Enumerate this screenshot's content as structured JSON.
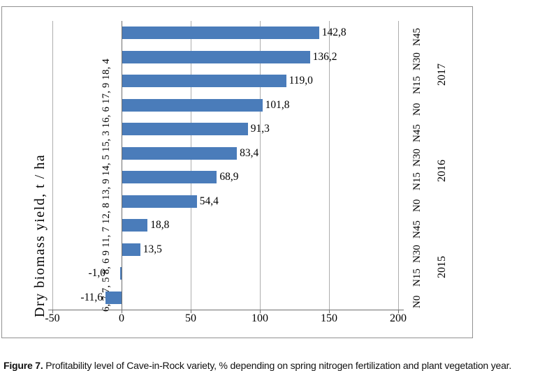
{
  "figure_caption": {
    "label": "Figure 7.",
    "text": "Profitability level of Cave-in-Rock variety, % depending on spring nitrogen fertilization and plant vegetation year."
  },
  "chart_data": {
    "type": "bar",
    "orientation": "horizontal",
    "value_unit": "%",
    "left_axis_title": "Dry biomass yield, t / ha",
    "x_ticks": [
      "-50",
      "0",
      "50",
      "100",
      "150",
      "200"
    ],
    "xlim": [
      -50,
      200
    ],
    "grid": true,
    "legend": "none",
    "bar_color": "#4a7cba",
    "gridline_color": "#adadad",
    "axis_color": "#6e6e6e",
    "rows": [
      {
        "year": "2017",
        "treatment": "N45",
        "value": 142.8,
        "label": "142,8"
      },
      {
        "year": "2017",
        "treatment": "N30",
        "value": 136.2,
        "label": "136,2"
      },
      {
        "year": "2017",
        "treatment": "N15",
        "value": 119.0,
        "label": "119,0"
      },
      {
        "year": "2017",
        "treatment": "N0",
        "value": 101.8,
        "label": "101,8"
      },
      {
        "year": "2016",
        "treatment": "N45",
        "value": 91.3,
        "label": "91,3"
      },
      {
        "year": "2016",
        "treatment": "N30",
        "value": 83.4,
        "label": "83,4"
      },
      {
        "year": "2016",
        "treatment": "N15",
        "value": 68.9,
        "label": "68,9"
      },
      {
        "year": "2016",
        "treatment": "N0",
        "value": 54.4,
        "label": "54,4"
      },
      {
        "year": "2015",
        "treatment": "N45",
        "value": 18.8,
        "label": "18,8"
      },
      {
        "year": "2015",
        "treatment": "N30",
        "value": 13.5,
        "label": "13,5"
      },
      {
        "year": "2015",
        "treatment": "N15",
        "value": -1.0,
        "label": "-1,0"
      },
      {
        "year": "2015",
        "treatment": "N0",
        "value": -11.6,
        "label": "-11,6"
      }
    ],
    "year_groups": [
      "2017",
      "2016",
      "2015"
    ],
    "yield_labels_bottom_to_top": [
      "6, 7",
      "7, 5",
      "8, 6",
      "9",
      "11, 7",
      "12, 8",
      "13, 9",
      "14, 5",
      "15, 3",
      "16, 6",
      "17, 9",
      "18, 4"
    ]
  }
}
